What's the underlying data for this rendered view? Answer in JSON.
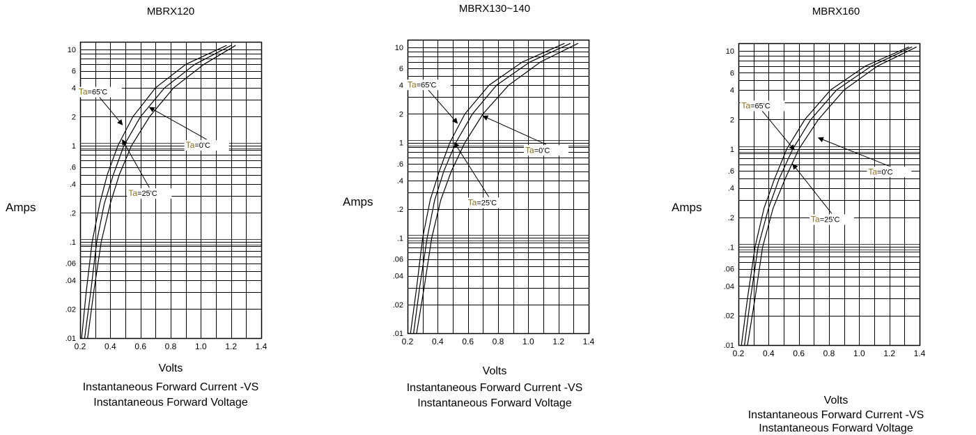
{
  "chart_data": [
    {
      "type": "line",
      "title": "MBRX120",
      "xlabel": "Volts",
      "ylabel": "Amps",
      "caption_line1": "Instantaneous Forward Current -VS",
      "caption_line2": "Instantaneous Forward Voltage",
      "xlim": [
        0.2,
        1.4
      ],
      "ylim": [
        0.01,
        12
      ],
      "yscale": "log",
      "xticks": [
        "0.2",
        "0.4",
        "0.6",
        "0.8",
        "1.0",
        "1.2",
        "1.4"
      ],
      "yticks": [
        {
          "v": 10,
          "label": "10"
        },
        {
          "v": 6,
          "label": "6"
        },
        {
          "v": 4,
          "label": "4"
        },
        {
          "v": 2,
          "label": "2"
        },
        {
          "v": 1,
          "label": "1"
        },
        {
          "v": 0.6,
          "label": ".6"
        },
        {
          "v": 0.4,
          "label": ".4"
        },
        {
          "v": 0.2,
          "label": ".2"
        },
        {
          "v": 0.1,
          "label": ".1"
        },
        {
          "v": 0.06,
          "label": ".06"
        },
        {
          "v": 0.04,
          "label": ".04"
        },
        {
          "v": 0.02,
          "label": ".02"
        },
        {
          "v": 0.01,
          "label": ".01"
        }
      ],
      "series": [
        {
          "x": [
            0.21,
            0.24,
            0.28,
            0.33,
            0.38,
            0.45,
            0.55,
            0.7,
            0.9,
            1.17
          ],
          "y": [
            0.01,
            0.03,
            0.1,
            0.25,
            0.5,
            1,
            2,
            4,
            7,
            11
          ]
        },
        {
          "x": [
            0.23,
            0.27,
            0.31,
            0.36,
            0.42,
            0.49,
            0.6,
            0.76,
            0.96,
            1.2
          ],
          "y": [
            0.01,
            0.03,
            0.1,
            0.25,
            0.5,
            1,
            2,
            4,
            7,
            11
          ]
        },
        {
          "x": [
            0.25,
            0.29,
            0.34,
            0.4,
            0.46,
            0.54,
            0.66,
            0.82,
            1.02,
            1.23
          ],
          "y": [
            0.01,
            0.03,
            0.1,
            0.25,
            0.5,
            1,
            2,
            4,
            7,
            11
          ]
        }
      ],
      "annotations": [
        {
          "prefix": "Ta",
          "text": "=65'C",
          "lx": 0.19,
          "ly": 3.4,
          "tx": 0.48,
          "ty": 1.65
        },
        {
          "prefix": "Ta",
          "text": "=25'C",
          "lx": 0.52,
          "ly": 0.3,
          "tx": 0.48,
          "ty": 1.15
        },
        {
          "prefix": "Ta",
          "text": "=0'C",
          "lx": 0.9,
          "ly": 0.95,
          "tx": 0.66,
          "ty": 2.5
        }
      ]
    },
    {
      "type": "line",
      "title": "MBRX130~140",
      "xlabel": "Volts",
      "ylabel": "Amps",
      "caption_line1": "Instantaneous Forward Current -VS",
      "caption_line2": "Instantaneous Forward Voltage",
      "xlim": [
        0.2,
        1.4
      ],
      "ylim": [
        0.01,
        12
      ],
      "yscale": "log",
      "xticks": [
        "0.2",
        "0.4",
        "0.6",
        "0.8",
        "1.0",
        "1.2",
        "1.4"
      ],
      "yticks": [
        {
          "v": 10,
          "label": "10"
        },
        {
          "v": 6,
          "label": "6"
        },
        {
          "v": 4,
          "label": "4"
        },
        {
          "v": 2,
          "label": "2"
        },
        {
          "v": 1,
          "label": "1"
        },
        {
          "v": 0.6,
          "label": ".6"
        },
        {
          "v": 0.4,
          "label": ".4"
        },
        {
          "v": 0.2,
          "label": ".2"
        },
        {
          "v": 0.1,
          "label": ".1"
        },
        {
          "v": 0.06,
          "label": ".06"
        },
        {
          "v": 0.04,
          "label": ".04"
        },
        {
          "v": 0.02,
          "label": ".02"
        },
        {
          "v": 0.01,
          "label": ".01"
        }
      ],
      "series": [
        {
          "x": [
            0.22,
            0.26,
            0.3,
            0.35,
            0.41,
            0.48,
            0.58,
            0.74,
            0.96,
            1.24
          ],
          "y": [
            0.01,
            0.03,
            0.1,
            0.25,
            0.5,
            1,
            2,
            4,
            7,
            11
          ]
        },
        {
          "x": [
            0.24,
            0.28,
            0.33,
            0.38,
            0.44,
            0.52,
            0.63,
            0.79,
            1.01,
            1.28
          ],
          "y": [
            0.01,
            0.03,
            0.1,
            0.25,
            0.5,
            1,
            2,
            4,
            7,
            11
          ]
        },
        {
          "x": [
            0.26,
            0.31,
            0.36,
            0.42,
            0.49,
            0.58,
            0.7,
            0.87,
            1.08,
            1.33
          ],
          "y": [
            0.01,
            0.03,
            0.1,
            0.25,
            0.5,
            1,
            2,
            4,
            7,
            11
          ]
        }
      ],
      "annotations": [
        {
          "prefix": "Ta",
          "text": "=65'C",
          "lx": 0.2,
          "ly": 3.8,
          "tx": 0.53,
          "ty": 1.6
        },
        {
          "prefix": "Ta",
          "text": "=25'C",
          "lx": 0.6,
          "ly": 0.22,
          "tx": 0.51,
          "ty": 1.0
        },
        {
          "prefix": "Ta",
          "text": "=0'C",
          "lx": 0.98,
          "ly": 0.78,
          "tx": 0.7,
          "ty": 1.9
        }
      ]
    },
    {
      "type": "line",
      "title": "MBRX160",
      "xlabel": "Volts",
      "ylabel": "Amps",
      "caption_line1": "Instantaneous Forward Current -VS",
      "caption_line2": "Instantaneous Forward Voltage",
      "xlim": [
        0.2,
        1.4
      ],
      "ylim": [
        0.01,
        12
      ],
      "yscale": "log",
      "xticks": [
        "0.2",
        "0.4",
        "0.6",
        "0.8",
        "1.0",
        "1.2",
        "1.4"
      ],
      "yticks": [
        {
          "v": 10,
          "label": "10"
        },
        {
          "v": 6,
          "label": "6"
        },
        {
          "v": 4,
          "label": "4"
        },
        {
          "v": 2,
          "label": "2"
        },
        {
          "v": 1,
          "label": "1"
        },
        {
          "v": 0.6,
          "label": ".6"
        },
        {
          "v": 0.4,
          "label": ".4"
        },
        {
          "v": 0.2,
          "label": ".2"
        },
        {
          "v": 0.1,
          "label": ".1"
        },
        {
          "v": 0.06,
          "label": ".06"
        },
        {
          "v": 0.04,
          "label": ".04"
        },
        {
          "v": 0.02,
          "label": ".02"
        },
        {
          "v": 0.01,
          "label": ".01"
        }
      ],
      "series": [
        {
          "x": [
            0.22,
            0.26,
            0.31,
            0.37,
            0.44,
            0.52,
            0.64,
            0.81,
            1.04,
            1.33
          ],
          "y": [
            0.01,
            0.03,
            0.1,
            0.25,
            0.5,
            1,
            2,
            4,
            7,
            11
          ]
        },
        {
          "x": [
            0.24,
            0.28,
            0.33,
            0.4,
            0.47,
            0.56,
            0.68,
            0.85,
            1.08,
            1.35
          ],
          "y": [
            0.01,
            0.03,
            0.1,
            0.25,
            0.5,
            1,
            2,
            4,
            7,
            11
          ]
        },
        {
          "x": [
            0.26,
            0.31,
            0.36,
            0.43,
            0.51,
            0.6,
            0.73,
            0.9,
            1.12,
            1.38
          ],
          "y": [
            0.01,
            0.03,
            0.1,
            0.25,
            0.5,
            1,
            2,
            4,
            7,
            11
          ]
        }
      ],
      "annotations": [
        {
          "prefix": "Ta",
          "text": "=65'C",
          "lx": 0.22,
          "ly": 2.6,
          "tx": 0.57,
          "ty": 0.98
        },
        {
          "prefix": "Ta",
          "text": "=25'C",
          "lx": 0.68,
          "ly": 0.18,
          "tx": 0.56,
          "ty": 0.7
        },
        {
          "prefix": "Ta",
          "text": "=0'C",
          "lx": 1.06,
          "ly": 0.55,
          "tx": 0.73,
          "ty": 1.3
        }
      ]
    }
  ]
}
